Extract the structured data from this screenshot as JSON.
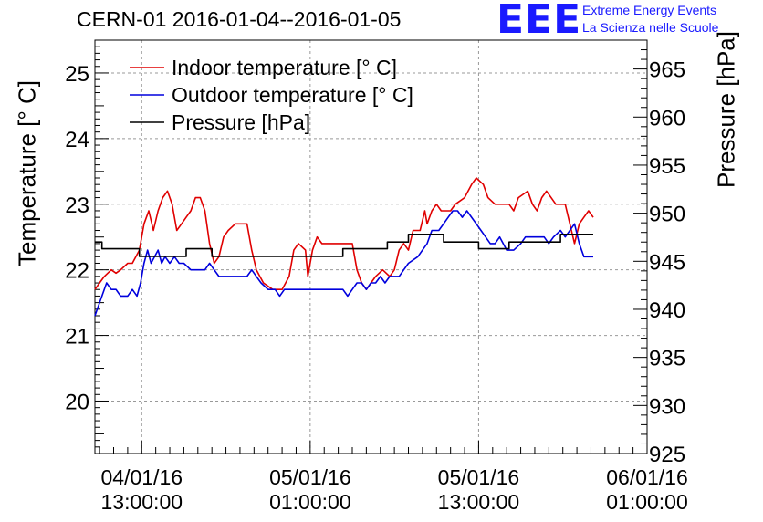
{
  "header": {
    "title": "CERN-01 2016-01-04--2016-01-05",
    "logo_text": "EEE",
    "logo_line1": "Extreme Energy Events",
    "logo_line2": "La Scienza nelle Scuole"
  },
  "colors": {
    "indoor": "#e00000",
    "outdoor": "#0000dd",
    "pressure": "#000000",
    "logo": "#1a1aff"
  },
  "chart_data": {
    "type": "line",
    "title": "CERN-01 2016-01-04--2016-01-05",
    "ylabel": "Temperature [° C]",
    "y2label": "Pressure [hPa]",
    "ylim": [
      19.2,
      25.5
    ],
    "y2lim": [
      925,
      968
    ],
    "xlim": [
      "2016-01-04T09:40",
      "2016-01-06T01:00"
    ],
    "grid": true,
    "legend_position": "top-left",
    "yticks": [
      20,
      21,
      22,
      23,
      24,
      25
    ],
    "y2ticks": [
      925,
      930,
      935,
      940,
      945,
      950,
      955,
      960,
      965
    ],
    "xticks": [
      {
        "x": "2016-01-04T13:00",
        "line1": "04/01/16",
        "line2": "13:00:00"
      },
      {
        "x": "2016-01-05T01:00",
        "line1": "05/01/16",
        "line2": "01:00:00"
      },
      {
        "x": "2016-01-05T13:00",
        "line1": "05/01/16",
        "line2": "13:00:00"
      },
      {
        "x": "2016-01-06T01:00",
        "line1": "06/01/16",
        "line2": "01:00:00"
      }
    ],
    "series": [
      {
        "name": "Indoor temperature [° C]",
        "axis": "left",
        "points": [
          [
            "2016-01-04T09:40",
            21.7
          ],
          [
            "2016-01-04T10:00",
            21.8
          ],
          [
            "2016-01-04T10:20",
            21.9
          ],
          [
            "2016-01-04T10:50",
            22.0
          ],
          [
            "2016-01-04T11:10",
            21.95
          ],
          [
            "2016-01-04T11:30",
            22.0
          ],
          [
            "2016-01-04T12:00",
            22.1
          ],
          [
            "2016-01-04T12:20",
            22.1
          ],
          [
            "2016-01-04T12:50",
            22.3
          ],
          [
            "2016-01-04T13:10",
            22.7
          ],
          [
            "2016-01-04T13:30",
            22.9
          ],
          [
            "2016-01-04T13:50",
            22.6
          ],
          [
            "2016-01-04T14:10",
            22.9
          ],
          [
            "2016-01-04T14:30",
            23.1
          ],
          [
            "2016-01-04T14:50",
            23.2
          ],
          [
            "2016-01-04T15:10",
            23.0
          ],
          [
            "2016-01-04T15:30",
            22.6
          ],
          [
            "2016-01-04T15:50",
            22.7
          ],
          [
            "2016-01-04T16:10",
            22.8
          ],
          [
            "2016-01-04T16:30",
            22.9
          ],
          [
            "2016-01-04T16:50",
            23.1
          ],
          [
            "2016-01-04T17:10",
            23.1
          ],
          [
            "2016-01-04T17:30",
            22.9
          ],
          [
            "2016-01-04T17:50",
            22.4
          ],
          [
            "2016-01-04T18:10",
            22.1
          ],
          [
            "2016-01-04T18:30",
            22.2
          ],
          [
            "2016-01-04T18:50",
            22.5
          ],
          [
            "2016-01-04T19:10",
            22.6
          ],
          [
            "2016-01-04T19:40",
            22.7
          ],
          [
            "2016-01-04T20:30",
            22.7
          ],
          [
            "2016-01-04T20:50",
            22.3
          ],
          [
            "2016-01-04T21:10",
            22.0
          ],
          [
            "2016-01-04T21:40",
            21.8
          ],
          [
            "2016-01-04T22:20",
            21.7
          ],
          [
            "2016-01-04T23:00",
            21.7
          ],
          [
            "2016-01-04T23:30",
            21.9
          ],
          [
            "2016-01-04T23:50",
            22.3
          ],
          [
            "2016-01-05T00:10",
            22.4
          ],
          [
            "2016-01-05T00:40",
            22.3
          ],
          [
            "2016-01-05T00:50",
            21.9
          ],
          [
            "2016-01-05T01:10",
            22.3
          ],
          [
            "2016-01-05T01:30",
            22.5
          ],
          [
            "2016-01-05T01:50",
            22.4
          ],
          [
            "2016-01-05T02:20",
            22.4
          ],
          [
            "2016-01-05T04:00",
            22.4
          ],
          [
            "2016-01-05T04:20",
            22.0
          ],
          [
            "2016-01-05T04:40",
            21.8
          ],
          [
            "2016-01-05T05:00",
            21.7
          ],
          [
            "2016-01-05T05:20",
            21.8
          ],
          [
            "2016-01-05T05:40",
            21.9
          ],
          [
            "2016-01-05T06:10",
            22.0
          ],
          [
            "2016-01-05T06:40",
            21.9
          ],
          [
            "2016-01-05T07:00",
            22.0
          ],
          [
            "2016-01-05T07:20",
            22.3
          ],
          [
            "2016-01-05T07:40",
            22.4
          ],
          [
            "2016-01-05T08:00",
            22.3
          ],
          [
            "2016-01-05T08:20",
            22.6
          ],
          [
            "2016-01-05T08:50",
            22.6
          ],
          [
            "2016-01-05T09:10",
            22.9
          ],
          [
            "2016-01-05T09:20",
            22.7
          ],
          [
            "2016-01-05T09:40",
            22.9
          ],
          [
            "2016-01-05T10:00",
            23.0
          ],
          [
            "2016-01-05T10:20",
            22.9
          ],
          [
            "2016-01-05T11:00",
            22.9
          ],
          [
            "2016-01-05T11:20",
            23.0
          ],
          [
            "2016-01-05T12:00",
            23.1
          ],
          [
            "2016-01-05T12:30",
            23.3
          ],
          [
            "2016-01-05T12:50",
            23.4
          ],
          [
            "2016-01-05T13:20",
            23.3
          ],
          [
            "2016-01-05T13:40",
            23.1
          ],
          [
            "2016-01-05T14:10",
            23.0
          ],
          [
            "2016-01-05T15:10",
            23.0
          ],
          [
            "2016-01-05T15:30",
            22.9
          ],
          [
            "2016-01-05T15:50",
            23.1
          ],
          [
            "2016-01-05T16:30",
            23.2
          ],
          [
            "2016-01-05T16:50",
            23.0
          ],
          [
            "2016-01-05T17:10",
            22.9
          ],
          [
            "2016-01-05T17:30",
            23.1
          ],
          [
            "2016-01-05T17:50",
            23.2
          ],
          [
            "2016-01-05T18:10",
            23.1
          ],
          [
            "2016-01-05T18:30",
            23.0
          ],
          [
            "2016-01-05T19:10",
            23.0
          ],
          [
            "2016-01-05T19:30",
            22.7
          ],
          [
            "2016-01-05T19:50",
            22.4
          ],
          [
            "2016-01-05T20:10",
            22.7
          ],
          [
            "2016-01-05T20:30",
            22.8
          ],
          [
            "2016-01-05T20:50",
            22.9
          ],
          [
            "2016-01-05T21:10",
            22.8
          ]
        ]
      },
      {
        "name": "Outdoor temperature [° C]",
        "axis": "left",
        "points": [
          [
            "2016-01-04T09:40",
            21.3
          ],
          [
            "2016-01-04T10:00",
            21.5
          ],
          [
            "2016-01-04T10:10",
            21.6
          ],
          [
            "2016-01-04T10:30",
            21.8
          ],
          [
            "2016-01-04T10:50",
            21.7
          ],
          [
            "2016-01-04T11:10",
            21.7
          ],
          [
            "2016-01-04T11:30",
            21.6
          ],
          [
            "2016-01-04T12:00",
            21.6
          ],
          [
            "2016-01-04T12:20",
            21.7
          ],
          [
            "2016-01-04T12:40",
            21.6
          ],
          [
            "2016-01-04T12:55",
            21.8
          ],
          [
            "2016-01-04T13:10",
            22.1
          ],
          [
            "2016-01-04T13:25",
            22.3
          ],
          [
            "2016-01-04T13:40",
            22.1
          ],
          [
            "2016-01-04T13:55",
            22.2
          ],
          [
            "2016-01-04T14:10",
            22.3
          ],
          [
            "2016-01-04T14:25",
            22.1
          ],
          [
            "2016-01-04T14:40",
            22.2
          ],
          [
            "2016-01-04T15:00",
            22.1
          ],
          [
            "2016-01-04T15:20",
            22.2
          ],
          [
            "2016-01-04T15:40",
            22.1
          ],
          [
            "2016-01-04T16:00",
            22.1
          ],
          [
            "2016-01-04T16:30",
            22.0
          ],
          [
            "2016-01-04T17:30",
            22.0
          ],
          [
            "2016-01-04T17:50",
            22.1
          ],
          [
            "2016-01-04T18:10",
            22.0
          ],
          [
            "2016-01-04T18:30",
            21.9
          ],
          [
            "2016-01-04T20:30",
            21.9
          ],
          [
            "2016-01-04T20:50",
            22.0
          ],
          [
            "2016-01-04T21:10",
            21.9
          ],
          [
            "2016-01-04T21:30",
            21.8
          ],
          [
            "2016-01-04T22:00",
            21.7
          ],
          [
            "2016-01-04T22:30",
            21.7
          ],
          [
            "2016-01-04T22:50",
            21.6
          ],
          [
            "2016-01-04T23:10",
            21.7
          ],
          [
            "2016-01-05T03:20",
            21.7
          ],
          [
            "2016-01-05T03:40",
            21.6
          ],
          [
            "2016-01-05T04:00",
            21.7
          ],
          [
            "2016-01-05T04:20",
            21.8
          ],
          [
            "2016-01-05T04:40",
            21.8
          ],
          [
            "2016-01-05T05:00",
            21.7
          ],
          [
            "2016-01-05T05:20",
            21.8
          ],
          [
            "2016-01-05T05:40",
            21.8
          ],
          [
            "2016-01-05T06:00",
            21.9
          ],
          [
            "2016-01-05T06:20",
            21.8
          ],
          [
            "2016-01-05T06:40",
            21.9
          ],
          [
            "2016-01-05T07:20",
            21.9
          ],
          [
            "2016-01-05T07:40",
            22.0
          ],
          [
            "2016-01-05T08:00",
            22.1
          ],
          [
            "2016-01-05T08:40",
            22.2
          ],
          [
            "2016-01-05T09:00",
            22.3
          ],
          [
            "2016-01-05T09:20",
            22.4
          ],
          [
            "2016-01-05T09:40",
            22.6
          ],
          [
            "2016-01-05T10:10",
            22.6
          ],
          [
            "2016-01-05T10:30",
            22.7
          ],
          [
            "2016-01-05T10:50",
            22.8
          ],
          [
            "2016-01-05T11:10",
            22.9
          ],
          [
            "2016-01-05T11:30",
            22.9
          ],
          [
            "2016-01-05T11:50",
            22.8
          ],
          [
            "2016-01-05T12:10",
            22.9
          ],
          [
            "2016-01-05T12:30",
            22.8
          ],
          [
            "2016-01-05T12:50",
            22.7
          ],
          [
            "2016-01-05T13:10",
            22.6
          ],
          [
            "2016-01-05T13:30",
            22.5
          ],
          [
            "2016-01-05T13:50",
            22.4
          ],
          [
            "2016-01-05T14:10",
            22.4
          ],
          [
            "2016-01-05T14:30",
            22.5
          ],
          [
            "2016-01-05T15:00",
            22.3
          ],
          [
            "2016-01-05T15:30",
            22.3
          ],
          [
            "2016-01-05T16:00",
            22.4
          ],
          [
            "2016-01-05T16:20",
            22.5
          ],
          [
            "2016-01-05T17:40",
            22.5
          ],
          [
            "2016-01-05T18:00",
            22.4
          ],
          [
            "2016-01-05T18:20",
            22.5
          ],
          [
            "2016-01-05T18:50",
            22.6
          ],
          [
            "2016-01-05T19:10",
            22.5
          ],
          [
            "2016-01-05T19:30",
            22.6
          ],
          [
            "2016-01-05T19:50",
            22.7
          ],
          [
            "2016-01-05T20:10",
            22.4
          ],
          [
            "2016-01-05T20:30",
            22.2
          ],
          [
            "2016-01-05T21:10",
            22.2
          ]
        ]
      },
      {
        "name": "Pressure [hPa]",
        "axis": "right",
        "points": [
          [
            "2016-01-04T09:40",
            947.0
          ],
          [
            "2016-01-04T10:10",
            947.0
          ],
          [
            "2016-01-04T10:10",
            946.3
          ],
          [
            "2016-01-04T12:50",
            946.3
          ],
          [
            "2016-01-04T12:50",
            945.5
          ],
          [
            "2016-01-04T16:10",
            945.5
          ],
          [
            "2016-01-04T16:10",
            946.3
          ],
          [
            "2016-01-04T18:00",
            946.3
          ],
          [
            "2016-01-04T18:00",
            945.5
          ],
          [
            "2016-01-05T03:20",
            945.5
          ],
          [
            "2016-01-05T03:20",
            946.3
          ],
          [
            "2016-01-05T06:30",
            946.3
          ],
          [
            "2016-01-05T06:30",
            947.0
          ],
          [
            "2016-01-05T08:00",
            947.0
          ],
          [
            "2016-01-05T08:00",
            947.8
          ],
          [
            "2016-01-05T10:30",
            947.8
          ],
          [
            "2016-01-05T10:30",
            947.0
          ],
          [
            "2016-01-05T13:00",
            947.0
          ],
          [
            "2016-01-05T13:00",
            946.3
          ],
          [
            "2016-01-05T15:10",
            946.3
          ],
          [
            "2016-01-05T15:10",
            947.0
          ],
          [
            "2016-01-05T18:50",
            947.0
          ],
          [
            "2016-01-05T18:50",
            947.8
          ],
          [
            "2016-01-05T21:10",
            947.8
          ]
        ]
      }
    ]
  }
}
